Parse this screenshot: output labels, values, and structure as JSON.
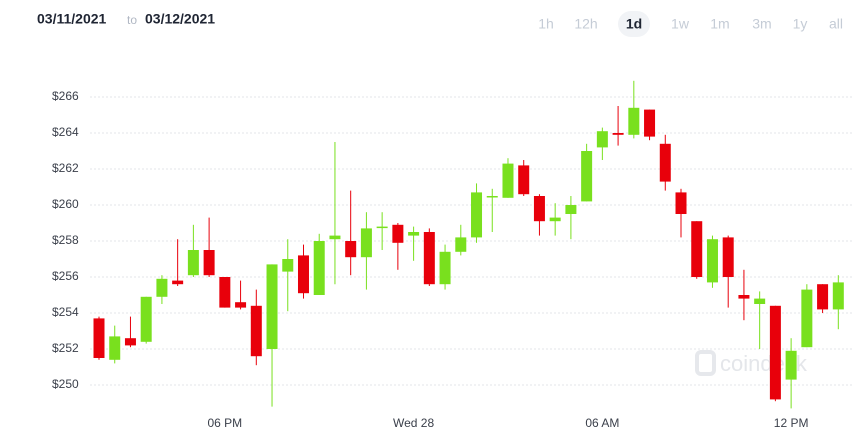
{
  "controls": {
    "from": "03/11/2021",
    "to_word": "to",
    "to": "03/12/2021",
    "ranges": [
      "1h",
      "12h",
      "1d",
      "1w",
      "1m",
      "3m",
      "1y",
      "all"
    ],
    "active": "1d"
  },
  "chart_data": {
    "type": "candlestick",
    "watermark": "coindesk",
    "up_color": "#79e01e",
    "down_color": "#e8000b",
    "grid": true,
    "categories": [
      null,
      null,
      null,
      null,
      null,
      null,
      null,
      null,
      "06 PM",
      null,
      null,
      null,
      null,
      null,
      null,
      null,
      null,
      null,
      null,
      null,
      "Wed 28",
      null,
      null,
      null,
      null,
      null,
      null,
      null,
      null,
      null,
      null,
      null,
      "06 AM",
      null,
      null,
      null,
      null,
      null,
      null,
      null,
      null,
      null,
      null,
      null,
      "12 PM",
      null,
      null,
      null
    ],
    "open": [
      253.7,
      251.4,
      252.6,
      252.4,
      254.9,
      255.8,
      256.1,
      257.5,
      256.0,
      254.6,
      254.4,
      252.0,
      256.3,
      257.2,
      255.0,
      258.1,
      258.0,
      257.1,
      258.8,
      258.9,
      258.3,
      258.5,
      255.6,
      257.4,
      258.2,
      260.5,
      260.4,
      262.2,
      260.5,
      259.1,
      259.5,
      260.2,
      263.2,
      264.0,
      263.9,
      265.3,
      263.4,
      260.7,
      259.1,
      255.7,
      258.2,
      255.0,
      254.5,
      254.4,
      250.3,
      252.1,
      255.6,
      254.2
    ],
    "high": [
      253.8,
      253.3,
      253.8,
      254.9,
      256.1,
      258.1,
      258.9,
      259.3,
      256.0,
      255.8,
      255.3,
      256.7,
      258.1,
      257.8,
      258.4,
      263.5,
      260.8,
      259.6,
      259.6,
      259.0,
      258.8,
      258.7,
      257.8,
      258.9,
      261.2,
      260.9,
      262.6,
      262.5,
      260.6,
      260.1,
      260.5,
      263.4,
      264.3,
      265.5,
      266.9,
      265.3,
      263.9,
      260.9,
      259.1,
      258.3,
      258.3,
      256.4,
      255.2,
      254.4,
      252.6,
      255.6,
      255.6,
      256.1
    ],
    "low": [
      251.4,
      251.2,
      252.1,
      252.3,
      254.5,
      255.5,
      256.0,
      256.0,
      254.3,
      254.2,
      251.1,
      248.8,
      254.1,
      254.8,
      255.0,
      255.6,
      256.1,
      255.3,
      257.5,
      256.4,
      256.9,
      255.5,
      255.3,
      257.2,
      257.9,
      258.5,
      260.4,
      260.5,
      258.3,
      258.3,
      258.1,
      260.2,
      262.5,
      263.3,
      263.7,
      263.6,
      260.8,
      258.2,
      255.9,
      255.4,
      254.3,
      253.6,
      252.0,
      249.1,
      248.7,
      252.1,
      254.0,
      253.1
    ],
    "close": [
      251.5,
      252.7,
      252.2,
      254.9,
      255.9,
      255.6,
      257.5,
      256.1,
      254.3,
      254.3,
      251.6,
      256.7,
      257.0,
      255.1,
      258.0,
      258.3,
      257.1,
      258.7,
      258.8,
      257.9,
      258.5,
      255.6,
      257.4,
      258.2,
      260.7,
      260.5,
      262.3,
      260.6,
      259.1,
      259.3,
      260.0,
      263.0,
      264.1,
      263.9,
      265.4,
      263.8,
      261.3,
      259.5,
      256.0,
      258.1,
      256.0,
      254.8,
      254.8,
      249.2,
      251.9,
      255.3,
      254.2,
      255.7
    ],
    "ylim": [
      248.5,
      268
    ],
    "yticks": [
      {
        "value": 250,
        "label": "$250"
      },
      {
        "value": 252,
        "label": "$252"
      },
      {
        "value": 254,
        "label": "$254"
      },
      {
        "value": 256,
        "label": "$256"
      },
      {
        "value": 258,
        "label": "$258"
      },
      {
        "value": 260,
        "label": "$260"
      },
      {
        "value": 262,
        "label": "$262"
      },
      {
        "value": 264,
        "label": "$264"
      },
      {
        "value": 266,
        "label": "$266"
      }
    ]
  }
}
